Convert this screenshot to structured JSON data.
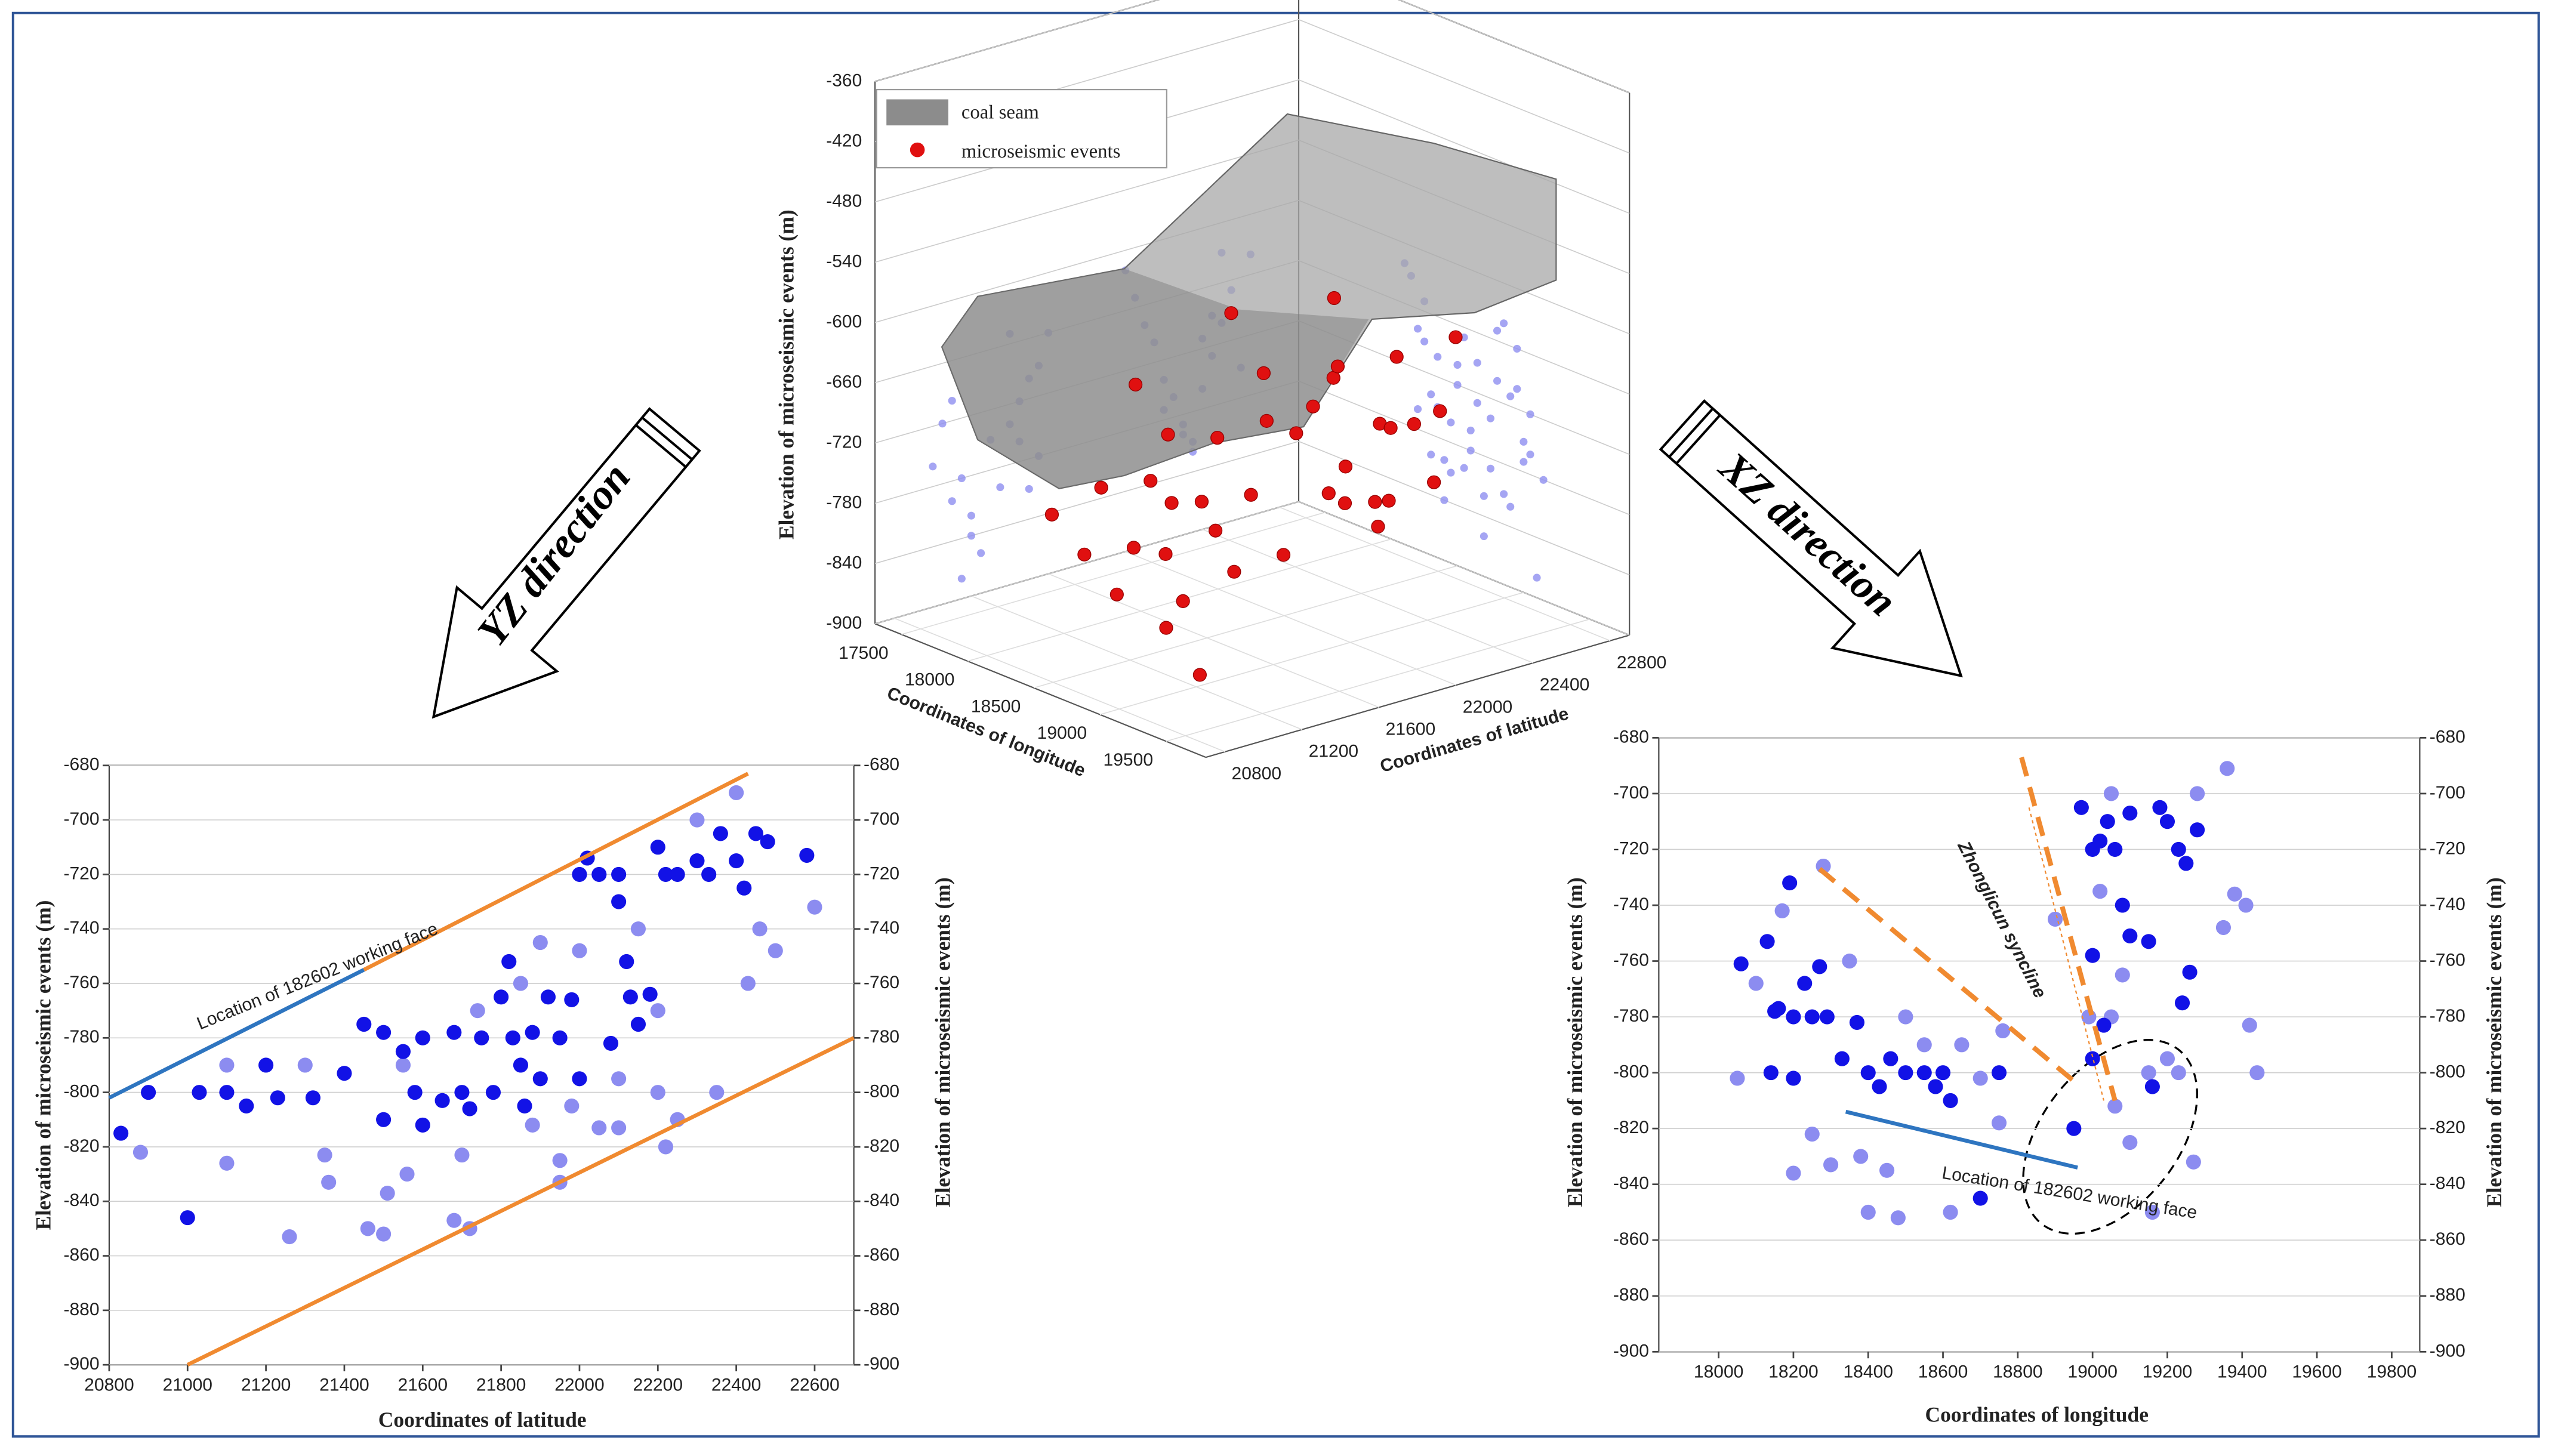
{
  "labels": [
    "YZ direction",
    "XZ direction"
  ],
  "chart_data": [
    {
      "type": "scatter3d",
      "xlabel": "Coordinates of longitude",
      "ylabel": "Coordinates of latitude",
      "zlabel": "Elevation of microseismic events (m)",
      "xlim": [
        17300,
        19800
      ],
      "xticks": [
        17500,
        18000,
        18500,
        19000,
        19500
      ],
      "ylim": [
        20700,
        22900
      ],
      "yticks": [
        20800,
        21200,
        21600,
        22000,
        22400,
        22800
      ],
      "zlim": [
        -900,
        -360
      ],
      "zticks": [
        -360,
        -420,
        -480,
        -540,
        -600,
        -660,
        -720,
        -780,
        -840,
        -900
      ],
      "surface_name": "coal seam",
      "surface_color": "#8c8c8c",
      "series": [
        {
          "name": "microseismic events",
          "color": "#e01010",
          "shadow_color": "#8f8ff0",
          "x": [
            18200,
            18300,
            18400,
            18500,
            18600,
            18700,
            18800,
            18900,
            19000,
            19100,
            18250,
            18350,
            18450,
            18550,
            18650,
            18750,
            18850,
            18950,
            19050,
            19150,
            18100,
            18200,
            18300,
            18400,
            18500,
            18600,
            18700,
            18800,
            18900,
            19000,
            18150,
            18250,
            18350,
            18450,
            18550,
            18650,
            18750,
            18850,
            18950,
            19050
          ],
          "y": [
            21000,
            21100,
            21200,
            21050,
            21150,
            21250,
            21100,
            21200,
            21300,
            21150,
            21400,
            21500,
            21450,
            21350,
            21550,
            21400,
            21500,
            21600,
            21450,
            21550,
            22000,
            22100,
            22200,
            22300,
            22150,
            22250,
            22350,
            22050,
            22400,
            22200,
            22500,
            22450,
            22600,
            22350,
            22550,
            22450,
            22300,
            22650,
            22500,
            22400
          ],
          "z": [
            -760,
            -800,
            -840,
            -720,
            -780,
            -860,
            -700,
            -820,
            -750,
            -880,
            -650,
            -700,
            -760,
            -800,
            -690,
            -740,
            -810,
            -660,
            -720,
            -780,
            -620,
            -680,
            -740,
            -800,
            -700,
            -760,
            -820,
            -650,
            -710,
            -770,
            -630,
            -690,
            -750,
            -810,
            -670,
            -730,
            -790,
            -640,
            -700,
            -760
          ]
        }
      ]
    },
    {
      "type": "scatter",
      "xlabel": "Coordinates of latitude",
      "ylabel": "Elevation of microseismic events (m)",
      "y2label": "Elevation of microseismic events (m)",
      "xlim": [
        20800,
        22700
      ],
      "xticks": [
        20800,
        21000,
        21200,
        21400,
        21600,
        21800,
        22000,
        22200,
        22400,
        22600
      ],
      "ylim": [
        -900,
        -680
      ],
      "yticks": [
        -680,
        -700,
        -720,
        -740,
        -760,
        -780,
        -800,
        -820,
        -840,
        -860,
        -880,
        -900
      ],
      "y2lim": [
        -900,
        -680
      ],
      "y2ticks": [
        -680,
        -700,
        -720,
        -740,
        -760,
        -780,
        -800,
        -820,
        -840,
        -860,
        -880,
        -900
      ],
      "grid": true,
      "series": [
        {
          "color": "#1212e6",
          "x": [
            20830,
            20900,
            21000,
            21030,
            21100,
            21150,
            21200,
            21230,
            21320,
            21400,
            21450,
            21500,
            21500,
            21550,
            21580,
            21600,
            21600,
            21650,
            21680,
            21700,
            21720,
            21750,
            21780,
            21800,
            21820,
            21830,
            21850,
            21860,
            21880,
            21900,
            21920,
            21950,
            21980,
            22000,
            22000,
            22020,
            22050,
            22080,
            22100,
            22100,
            22120,
            22130,
            22150,
            22180,
            22200,
            22220,
            22250,
            22300,
            22330,
            22360,
            22400,
            22420,
            22450,
            22480,
            22580
          ],
          "values": [
            -815,
            -800,
            -846,
            -800,
            -800,
            -805,
            -790,
            -802,
            -802,
            -793,
            -775,
            -778,
            -810,
            -785,
            -800,
            -812,
            -780,
            -803,
            -778,
            -800,
            -806,
            -780,
            -800,
            -765,
            -752,
            -780,
            -790,
            -805,
            -778,
            -795,
            -765,
            -780,
            -766,
            -720,
            -795,
            -714,
            -720,
            -782,
            -730,
            -720,
            -752,
            -765,
            -775,
            -764,
            -710,
            -720,
            -720,
            -715,
            -720,
            -705,
            -715,
            -725,
            -705,
            -708,
            -713
          ]
        },
        {
          "color": "#8c8cf0",
          "x": [
            20880,
            21100,
            21100,
            21260,
            21300,
            21350,
            21360,
            21460,
            21500,
            21510,
            21550,
            21560,
            21680,
            21700,
            21720,
            21740,
            21850,
            21880,
            21900,
            21950,
            21950,
            21980,
            22000,
            22050,
            22100,
            22100,
            22150,
            22200,
            22200,
            22220,
            22250,
            22300,
            22350,
            22400,
            22430,
            22460,
            22500,
            22600
          ],
          "values": [
            -822,
            -826,
            -790,
            -853,
            -790,
            -823,
            -833,
            -850,
            -852,
            -837,
            -790,
            -830,
            -847,
            -823,
            -850,
            -770,
            -760,
            -812,
            -745,
            -833,
            -825,
            -805,
            -748,
            -813,
            -813,
            -795,
            -740,
            -800,
            -770,
            -820,
            -810,
            -700,
            -800,
            -690,
            -760,
            -740,
            -748,
            -732
          ]
        }
      ],
      "lines": [
        {
          "color": "#2e75c0",
          "x": [
            20800,
            21450
          ],
          "y": [
            -802,
            -755
          ]
        },
        {
          "color": "#f08a30",
          "x": [
            21450,
            22430
          ],
          "y": [
            -755,
            -683
          ]
        },
        {
          "color": "#f08a30",
          "x": [
            21000,
            22700
          ],
          "y": [
            -900,
            -780
          ]
        }
      ],
      "annotations": [
        "Location of 182602 working face"
      ]
    },
    {
      "type": "scatter",
      "xlabel": "Coordinates of longitude",
      "ylabel": "Elevation of microseismic events (m)",
      "y2label": "Elevation of microseismic events (m)",
      "xlim": [
        17840,
        19875
      ],
      "xticks": [
        18000,
        18200,
        18400,
        18600,
        18800,
        19000,
        19200,
        19400,
        19600,
        19800
      ],
      "ylim": [
        -900,
        -680
      ],
      "yticks": [
        -680,
        -700,
        -720,
        -740,
        -760,
        -780,
        -800,
        -820,
        -840,
        -860,
        -880,
        -900
      ],
      "y2lim": [
        -900,
        -680
      ],
      "y2ticks": [
        -680,
        -700,
        -720,
        -740,
        -760,
        -780,
        -800,
        -820,
        -840,
        -860,
        -880,
        -900
      ],
      "grid": true,
      "series": [
        {
          "color": "#1212e6",
          "x": [
            18060,
            18130,
            18150,
            18190,
            18200,
            18230,
            18250,
            18270,
            18290,
            18330,
            18370,
            18400,
            18430,
            18460,
            18500,
            18550,
            18580,
            18600,
            18620,
            18700,
            18750,
            18970,
            19000,
            19020,
            19040,
            19060,
            19080,
            19100,
            19150,
            19200,
            19230,
            19240,
            19260,
            19280,
            19000,
            19030,
            18950,
            19000,
            19160,
            19250,
            19180,
            19100,
            18140,
            18200,
            18160
          ],
          "values": [
            -761,
            -753,
            -778,
            -732,
            -780,
            -768,
            -780,
            -762,
            -780,
            -795,
            -782,
            -800,
            -805,
            -795,
            -800,
            -800,
            -805,
            -800,
            -810,
            -845,
            -800,
            -705,
            -720,
            -717,
            -710,
            -720,
            -740,
            -751,
            -753,
            -710,
            -720,
            -775,
            -764,
            -713,
            -758,
            -783,
            -820,
            -795,
            -805,
            -725,
            -705,
            -707,
            -800,
            -802,
            -777
          ]
        },
        {
          "color": "#8c8cf0",
          "x": [
            18050,
            18100,
            18170,
            18200,
            18250,
            18300,
            18280,
            18350,
            18380,
            18400,
            18450,
            18480,
            18500,
            18550,
            18620,
            18650,
            18700,
            18750,
            18760,
            18900,
            18990,
            19020,
            19050,
            19060,
            19080,
            19100,
            19150,
            19160,
            19200,
            19230,
            19270,
            19280,
            19360,
            19380,
            19410,
            19420,
            19350,
            19440,
            19050
          ],
          "values": [
            -802,
            -768,
            -742,
            -836,
            -822,
            -833,
            -726,
            -760,
            -830,
            -850,
            -835,
            -852,
            -780,
            -790,
            -850,
            -790,
            -802,
            -818,
            -785,
            -745,
            -780,
            -735,
            -700,
            -812,
            -765,
            -825,
            -800,
            -850,
            -795,
            -800,
            -832,
            -700,
            -691,
            -736,
            -740,
            -783,
            -748,
            -800,
            -780
          ]
        }
      ],
      "lines": [
        {
          "color": "#f08a30",
          "dash": true,
          "x": [
            18270,
            18950
          ],
          "y": [
            -727,
            -803
          ]
        },
        {
          "color": "#f08a30",
          "dash": true,
          "x": [
            18810,
            19060
          ],
          "y": [
            -687,
            -810
          ]
        },
        {
          "color": "#f08a30",
          "thin": true,
          "x": [
            18830,
            19030
          ],
          "y": [
            -705,
            -810
          ]
        },
        {
          "color": "#2e75c0",
          "x": [
            18340,
            18960
          ],
          "y": [
            -814,
            -834
          ]
        }
      ],
      "annotations": [
        "Zhonglicun syncline",
        "Location of 182602 working face"
      ]
    }
  ]
}
